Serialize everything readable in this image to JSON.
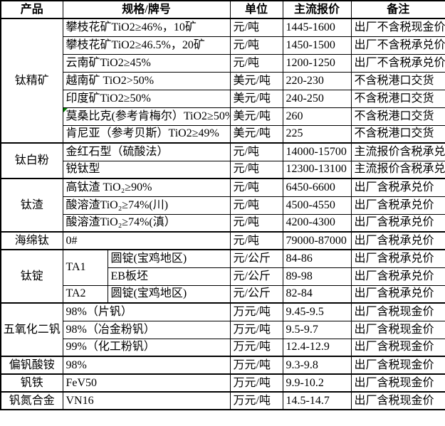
{
  "colors": {
    "border": "#000000",
    "background": "#ffffff",
    "text": "#000000",
    "flag": "#008000"
  },
  "table": {
    "header": {
      "product": "产品",
      "spec": "规格/牌号",
      "unit": "单位",
      "price": "主流报价",
      "note": "备注"
    },
    "groups": [
      {
        "product": "钛精矿",
        "rows": [
          {
            "spec": "攀枝花矿TiO2≥46%，10矿",
            "unit": "元/吨",
            "price": "1445-1600",
            "note": "出厂不含税现金价"
          },
          {
            "spec": "攀枝花矿TiO2≥46.5%，20矿",
            "unit": "元/吨",
            "price": "1450-1500",
            "note": "出厂不含税承兑价"
          },
          {
            "spec": "云南矿TiO2≥45%",
            "unit": "元/吨",
            "price": "1200-1250",
            "note": "出厂不含税承兑价"
          },
          {
            "spec": "越南矿 TiO2>50%",
            "unit": "美元/吨",
            "price": "220-230",
            "note": "不含税港口交货"
          },
          {
            "spec": "印度矿TiO2≥50%",
            "unit": "美元/吨",
            "price": "240-250",
            "note": "不含税港口交货"
          },
          {
            "spec": "莫桑比克(参考肯梅尔）TiO2≥50%",
            "flag": true,
            "unit": "美元/吨",
            "price": "260",
            "note": "不含税港口交货"
          },
          {
            "spec": "肯尼亚（参考贝斯）TiO2≥49%",
            "unit": "美元/吨",
            "price": "225",
            "note": "不含税港口交货"
          }
        ]
      },
      {
        "product": "钛白粉",
        "rows": [
          {
            "spec": "金红石型（硫酸法）",
            "unit": "元/吨",
            "price": "14000-15700",
            "note": "主流报价含税承兑"
          },
          {
            "spec": "锐钛型",
            "unit": "元/吨",
            "price": "12300-13100",
            "note": "主流报价含税承兑"
          }
        ]
      },
      {
        "product": "钛渣",
        "rows": [
          {
            "spec": "高钛渣 TiO₂≥90%",
            "unit": "元/吨",
            "price": "6450-6600",
            "note": "出厂含税承兑价"
          },
          {
            "spec": "酸溶渣TiO₂≥74%(川)",
            "unit": "元/吨",
            "price": "4500-4550",
            "note": "出厂含税承兑价"
          },
          {
            "spec": "酸溶渣TiO₂≥74%(滇）",
            "unit": "元/吨",
            "price": "4200-4300",
            "note": "出厂含税承兑价"
          }
        ]
      },
      {
        "product": "海绵钛",
        "rows": [
          {
            "spec": "0#",
            "unit": "元/吨",
            "price": "79000-87000",
            "note": "出厂含税承兑价"
          }
        ]
      },
      {
        "product": "钛锭",
        "rows": [
          {
            "spec": "TA1",
            "spec_rowspan": 2,
            "spec2": "圆锭(宝鸡地区)",
            "unit": "元/公斤",
            "price": "84-86",
            "note": "出厂含税承兑价"
          },
          {
            "spec2": "EB板坯",
            "unit": "元/公斤",
            "price": "89-98",
            "note": "出厂含税承兑价"
          },
          {
            "spec": "TA2",
            "spec2": "圆锭(宝鸡地区)",
            "unit": "元/公斤",
            "price": "82-84",
            "note": "出厂含税承兑价"
          }
        ]
      },
      {
        "product": "五氧化二钒",
        "rows": [
          {
            "spec": "98%（片钒）",
            "unit": "万元/吨",
            "price": "9.45-9.5",
            "note": "出厂含税现金价"
          },
          {
            "spec": "98%（冶金粉钒）",
            "unit": "万元/吨",
            "price": "9.5-9.7",
            "note": "出厂含税现金价"
          },
          {
            "spec": "99%（化工粉钒）",
            "unit": "万元/吨",
            "price": "12.4-12.9",
            "note": "出厂含税现金价"
          }
        ]
      },
      {
        "product": "偏钒酸铵",
        "rows": [
          {
            "spec": "98%",
            "unit": "万元/吨",
            "price": "9.3-9.8",
            "note": "出厂含税现金价"
          }
        ]
      },
      {
        "product": "钒铁",
        "rows": [
          {
            "spec": "FeV50",
            "unit": "万元/吨",
            "price": "9.9-10.2",
            "note": "出厂含税现金价"
          }
        ]
      },
      {
        "product": "钒氮合金",
        "rows": [
          {
            "spec": "VN16",
            "unit": "万元/吨",
            "price": "14.5-14.7",
            "note": "出厂含税现金价"
          }
        ]
      }
    ]
  }
}
